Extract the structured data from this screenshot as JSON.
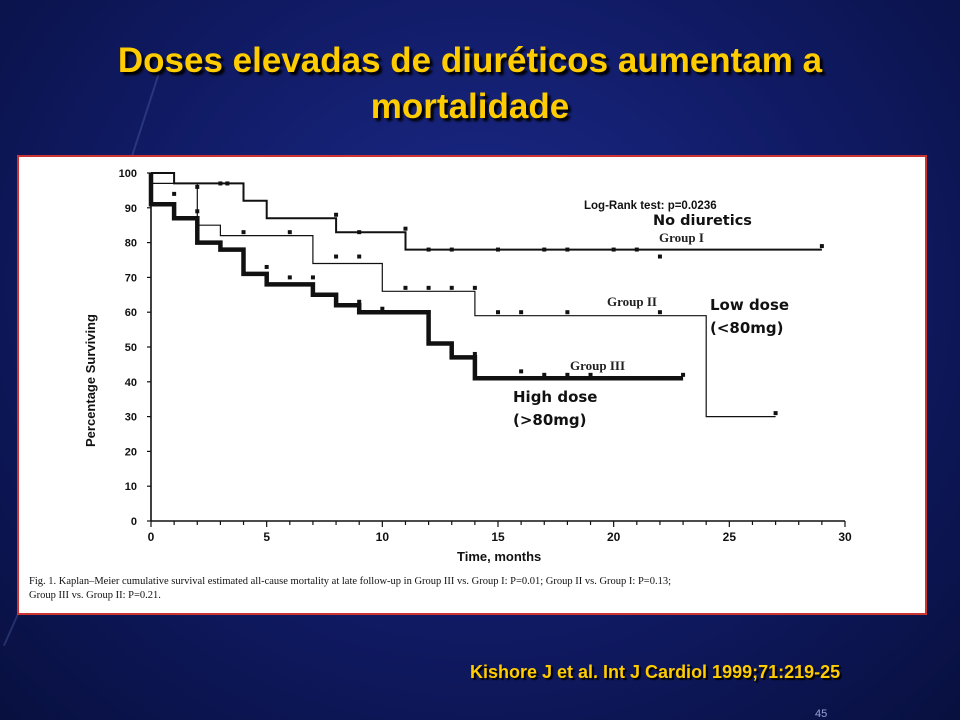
{
  "slide": {
    "title_line1": "Doses elevadas de diuréticos aumentam a",
    "title_line2": "mortalidade",
    "citation": "Kishore J et al. Int J Cardiol 1999;71:219-25",
    "page_number": "45"
  },
  "colors": {
    "title": "#ffcc00",
    "background": "#101a63",
    "panel_border": "#cc3333"
  },
  "chart_data": {
    "type": "line",
    "step": true,
    "title": "",
    "xlabel": "Time, months",
    "ylabel": "Percentage Surviving",
    "xlim": [
      0,
      30
    ],
    "ylim": [
      0,
      100
    ],
    "xticks": [
      0,
      5,
      10,
      15,
      20,
      25,
      30
    ],
    "yticks": [
      0,
      10,
      20,
      30,
      40,
      50,
      60,
      70,
      80,
      90,
      100
    ],
    "log_rank": "Log-Rank test: p=0.0236",
    "caption_line1": "Fig. 1.  Kaplan–Meier cumulative survival estimated all-cause mortality at late follow-up in Group III vs. Group I: P=0.01; Group II vs. Group I: P=0.13;",
    "caption_line2": "Group III vs. Group II: P=0.21.",
    "series": [
      {
        "name": "Group I",
        "annotation": "No diuretics",
        "points": [
          [
            0,
            100
          ],
          [
            1,
            100
          ],
          [
            1,
            97
          ],
          [
            4,
            97
          ],
          [
            4,
            92
          ],
          [
            5,
            92
          ],
          [
            5,
            87
          ],
          [
            8,
            87
          ],
          [
            8,
            83
          ],
          [
            11,
            83
          ],
          [
            11,
            78
          ],
          [
            29,
            78
          ]
        ],
        "censored": [
          [
            3,
            97
          ],
          [
            3.3,
            97
          ],
          [
            8,
            88
          ],
          [
            9,
            83
          ],
          [
            11,
            84
          ],
          [
            12,
            78
          ],
          [
            13,
            78
          ],
          [
            15,
            78
          ],
          [
            17,
            78
          ],
          [
            18,
            78
          ],
          [
            20,
            78
          ],
          [
            21,
            78
          ],
          [
            22,
            76
          ],
          [
            29,
            79
          ]
        ]
      },
      {
        "name": "Group II",
        "annotation": "Low dose",
        "annotation2": "(<80mg)",
        "points": [
          [
            0,
            100
          ],
          [
            0,
            97
          ],
          [
            2,
            97
          ],
          [
            2,
            85
          ],
          [
            3,
            85
          ],
          [
            3,
            82
          ],
          [
            7,
            82
          ],
          [
            7,
            74
          ],
          [
            10,
            74
          ],
          [
            10,
            66
          ],
          [
            14,
            66
          ],
          [
            14,
            59
          ],
          [
            24,
            59
          ],
          [
            24,
            30
          ],
          [
            27,
            30
          ]
        ],
        "censored": [
          [
            1,
            94
          ],
          [
            2,
            96
          ],
          [
            4,
            83
          ],
          [
            6,
            83
          ],
          [
            8,
            76
          ],
          [
            9,
            76
          ],
          [
            11,
            67
          ],
          [
            12,
            67
          ],
          [
            13,
            67
          ],
          [
            14,
            67
          ],
          [
            15,
            60
          ],
          [
            16,
            60
          ],
          [
            18,
            60
          ],
          [
            22,
            60
          ],
          [
            27,
            31
          ]
        ]
      },
      {
        "name": "Group III",
        "annotation": "High dose",
        "annotation2": "(>80mg)",
        "points": [
          [
            0,
            100
          ],
          [
            0,
            91
          ],
          [
            1,
            91
          ],
          [
            1,
            87
          ],
          [
            2,
            87
          ],
          [
            2,
            80
          ],
          [
            3,
            80
          ],
          [
            3,
            78
          ],
          [
            4,
            78
          ],
          [
            4,
            71
          ],
          [
            5,
            71
          ],
          [
            5,
            68
          ],
          [
            7,
            68
          ],
          [
            7,
            65
          ],
          [
            8,
            65
          ],
          [
            8,
            62
          ],
          [
            9,
            62
          ],
          [
            9,
            60
          ],
          [
            12,
            60
          ],
          [
            12,
            51
          ],
          [
            13,
            51
          ],
          [
            13,
            47
          ],
          [
            14,
            47
          ],
          [
            14,
            41
          ],
          [
            23,
            41
          ]
        ],
        "censored": [
          [
            2,
            89
          ],
          [
            5,
            73
          ],
          [
            6,
            70
          ],
          [
            7,
            70
          ],
          [
            9,
            63
          ],
          [
            10,
            61
          ],
          [
            14,
            48
          ],
          [
            16,
            43
          ],
          [
            17,
            42
          ],
          [
            18,
            42
          ],
          [
            19,
            42
          ],
          [
            20,
            41
          ],
          [
            21,
            41
          ],
          [
            22,
            41
          ],
          [
            23,
            42
          ]
        ]
      }
    ]
  }
}
